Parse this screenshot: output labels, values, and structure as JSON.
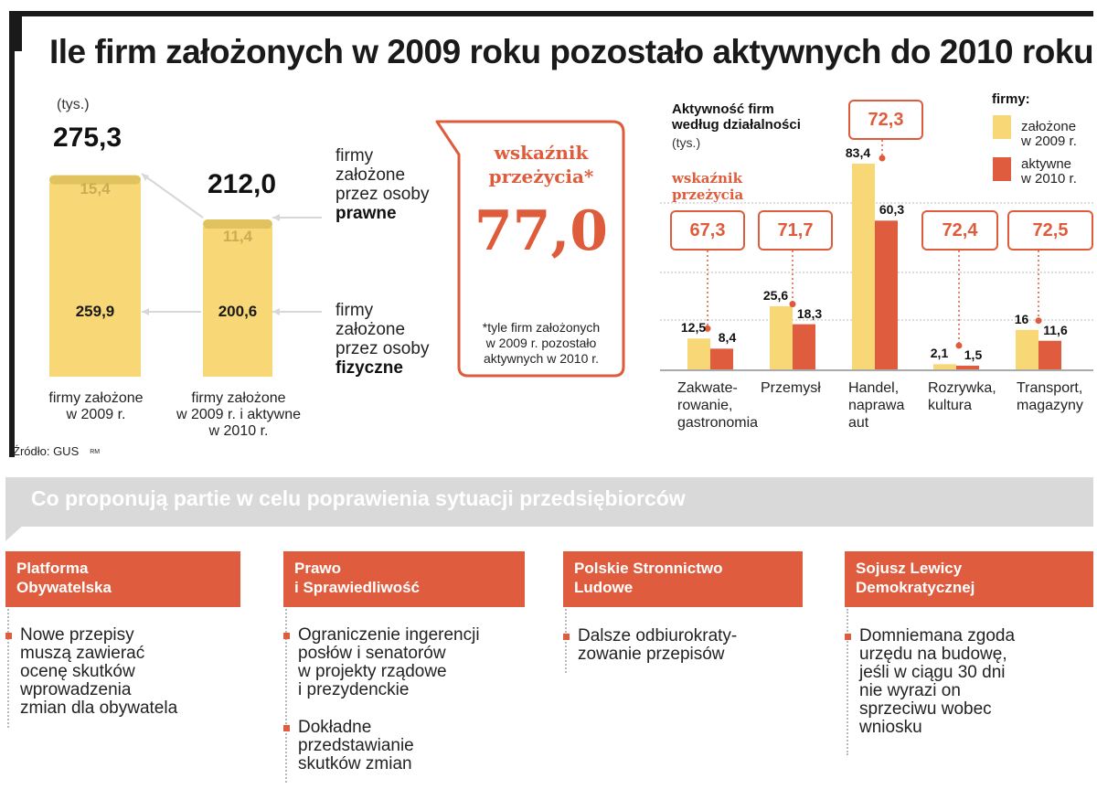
{
  "title": "Ile firm założonych w 2009 roku pozostało aktywnych do 2010 roku",
  "chart_data": [
    {
      "type": "bar",
      "unit": "(tys.)",
      "categories": [
        "firmy założone w 2009 r.",
        "firmy założone w 2009 r. i aktywne w 2010 r."
      ],
      "totals": [
        "275,3",
        "212,0"
      ],
      "series": [
        {
          "name": "firmy założone przez osoby prawne",
          "name_parts": [
            "firmy",
            "założone",
            "przez osoby",
            "prawne"
          ],
          "values": [
            15.4,
            11.4
          ],
          "labels": [
            "15,4",
            "11,4"
          ],
          "color": "#e0c25f"
        },
        {
          "name": "firmy założone przez osoby fizyczne",
          "name_parts": [
            "firmy",
            "założone",
            "przez osoby",
            "fizyczne"
          ],
          "values": [
            259.9,
            200.6
          ],
          "labels": [
            "259,9",
            "200,6"
          ],
          "color": "#f8d777"
        }
      ],
      "category_lines": [
        [
          "firmy założone",
          "w 2009 r."
        ],
        [
          "firmy założone",
          "w 2009 r. i aktywne",
          "w 2010 r."
        ]
      ]
    },
    {
      "type": "bar",
      "title_lines": [
        "Aktywność firm",
        "według działalności"
      ],
      "unit": "(tys.)",
      "survival_label_lines": [
        "wskaźnik",
        "przeżycia"
      ],
      "categories": [
        "Zakwaterowanie, gastronomia",
        "Przemysł",
        "Handel, naprawa aut",
        "Rozrywka, kultura",
        "Transport, magazyny"
      ],
      "category_lines": [
        [
          "Zakwate-",
          "rowanie,",
          "gastronomia"
        ],
        [
          "Przemysł"
        ],
        [
          "Handel,",
          "naprawa",
          "aut"
        ],
        [
          "Rozrywka,",
          "kultura"
        ],
        [
          "Transport,",
          "magazyny"
        ]
      ],
      "series": [
        {
          "name": "założone w 2009 r.",
          "values": [
            12.5,
            25.6,
            83.4,
            2.1,
            16
          ],
          "labels": [
            "12,5",
            "25,6",
            "83,4",
            "2,1",
            "16"
          ],
          "color": "#f8d777"
        },
        {
          "name": "aktywne w 2010 r.",
          "values": [
            8.4,
            18.3,
            60.3,
            1.5,
            11.6
          ],
          "labels": [
            "8,4",
            "18,3",
            "60,3",
            "1,5",
            "11,6"
          ],
          "color": "#df5d3e"
        }
      ],
      "survival_rates": [
        "67,3",
        "71,7",
        "72,3",
        "72,4",
        "72,5"
      ],
      "legend": {
        "title": "firmy:",
        "items": [
          [
            "założone",
            "w 2009 r."
          ],
          [
            "aktywne",
            "w 2010 r."
          ]
        ],
        "position": "top-right"
      },
      "ylim": [
        0,
        90
      ]
    }
  ],
  "survival_box": {
    "heading_lines": [
      "wskaźnik",
      "przeżycia*"
    ],
    "value": "77,0",
    "note_lines": [
      "*tyle firm założonych",
      "w 2009 r. pozostało",
      "aktywnych w 2010 r."
    ]
  },
  "source": "Źródło: GUS",
  "source_mark": "RM",
  "section_title": "Co proponują partie w celu poprawienia sytuacji przedsiębiorców",
  "parties": [
    {
      "name_lines": [
        "Platforma",
        "Obywatelska"
      ],
      "proposals": [
        [
          "Nowe przepisy",
          "muszą zawierać",
          "ocenę skutków",
          "wprowadzenia",
          "zmian dla obywatela"
        ]
      ]
    },
    {
      "name_lines": [
        "Prawo",
        "i Sprawiedliwość"
      ],
      "proposals": [
        [
          "Ograniczenie ingerencji",
          "posłów i senatorów",
          "w projekty rządowe",
          "i prezydenckie"
        ],
        [
          "Dokładne",
          "przedstawianie",
          "skutków zmian"
        ]
      ]
    },
    {
      "name_lines": [
        "Polskie Stronnictwo",
        "Ludowe"
      ],
      "proposals": [
        [
          "Dalsze odbiurokraty-",
          "zowanie przepisów"
        ]
      ]
    },
    {
      "name_lines": [
        "Sojusz Lewicy",
        "Demokratycznej"
      ],
      "proposals": [
        [
          "Domniemana zgoda",
          "urzędu na budowę,",
          "jeśli w ciągu 30 dni",
          "nie wyrazi on",
          "sprzeciwu wobec",
          "wniosku"
        ]
      ]
    }
  ],
  "colors": {
    "accent": "#de5c3b",
    "yellow": "#f8d777",
    "yellow_dark": "#e0c25f",
    "banner": "#d9d9d9"
  }
}
